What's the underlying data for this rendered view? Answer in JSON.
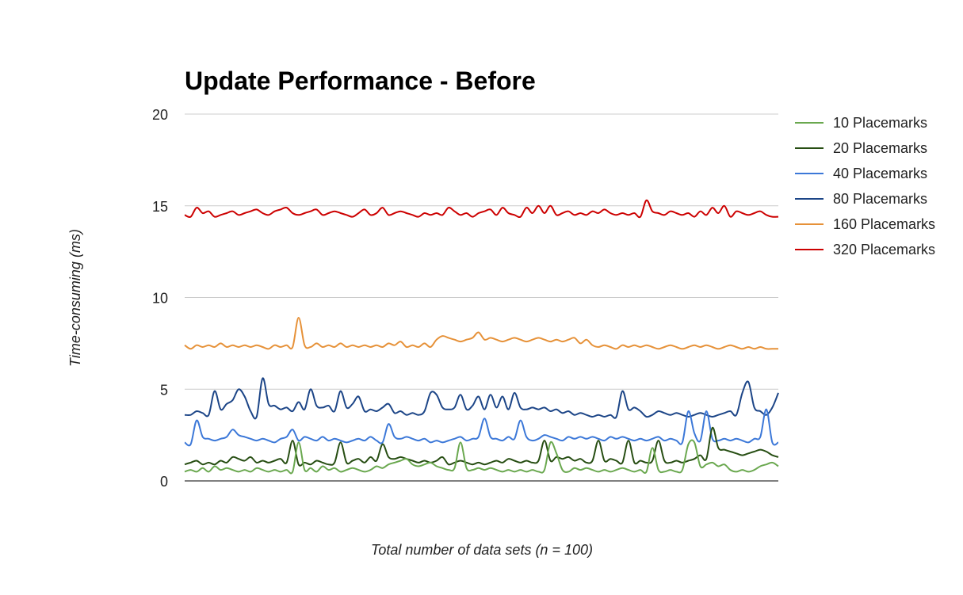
{
  "chart_data": {
    "type": "line",
    "title": "Update Performance - Before",
    "xlabel": "Total number of data sets (n = 100)",
    "ylabel": "Time-consuming (ms)",
    "ylim": [
      0,
      20
    ],
    "yticks": [
      0,
      5,
      10,
      15,
      20
    ],
    "grid": true,
    "legend": "right",
    "x": [
      1,
      2,
      3,
      4,
      5,
      6,
      7,
      8,
      9,
      10,
      11,
      12,
      13,
      14,
      15,
      16,
      17,
      18,
      19,
      20,
      21,
      22,
      23,
      24,
      25,
      26,
      27,
      28,
      29,
      30,
      31,
      32,
      33,
      34,
      35,
      36,
      37,
      38,
      39,
      40,
      41,
      42,
      43,
      44,
      45,
      46,
      47,
      48,
      49,
      50,
      51,
      52,
      53,
      54,
      55,
      56,
      57,
      58,
      59,
      60,
      61,
      62,
      63,
      64,
      65,
      66,
      67,
      68,
      69,
      70,
      71,
      72,
      73,
      74,
      75,
      76,
      77,
      78,
      79,
      80,
      81,
      82,
      83,
      84,
      85,
      86,
      87,
      88,
      89,
      90,
      91,
      92,
      93,
      94,
      95,
      96,
      97,
      98,
      99,
      100
    ],
    "series": [
      {
        "name": "10 Placemarks",
        "color": "#6aa84f",
        "values": [
          0.5,
          0.6,
          0.5,
          0.7,
          0.5,
          0.8,
          0.6,
          0.7,
          0.6,
          0.5,
          0.6,
          0.5,
          0.7,
          0.6,
          0.5,
          0.6,
          0.5,
          0.6,
          0.5,
          2.1,
          0.6,
          0.7,
          0.5,
          0.8,
          0.6,
          0.7,
          0.5,
          0.6,
          0.7,
          0.6,
          0.5,
          0.6,
          0.8,
          0.7,
          0.9,
          1.0,
          1.1,
          1.2,
          0.9,
          0.8,
          0.9,
          1.0,
          0.8,
          0.7,
          0.6,
          0.7,
          2.1,
          0.7,
          0.6,
          0.7,
          0.6,
          0.7,
          0.6,
          0.5,
          0.6,
          0.5,
          0.6,
          0.5,
          0.6,
          0.5,
          0.6,
          2.1,
          1.5,
          0.6,
          0.5,
          0.7,
          0.6,
          0.7,
          0.6,
          0.5,
          0.6,
          0.5,
          0.6,
          0.7,
          0.6,
          0.5,
          0.6,
          0.5,
          1.8,
          0.6,
          0.5,
          0.6,
          0.5,
          0.6,
          2.0,
          2.1,
          0.8,
          0.9,
          1.0,
          0.8,
          0.9,
          0.6,
          0.5,
          0.6,
          0.5,
          0.6,
          0.8,
          0.9,
          1.0,
          0.8
        ]
      },
      {
        "name": "20 Placemarks",
        "color": "#274e13",
        "values": [
          0.9,
          1.0,
          1.1,
          0.9,
          1.0,
          0.9,
          1.1,
          1.0,
          1.3,
          1.2,
          1.1,
          1.3,
          1.0,
          1.1,
          1.0,
          1.1,
          1.2,
          1.0,
          2.2,
          0.9,
          1.0,
          0.9,
          1.1,
          1.0,
          0.9,
          1.0,
          2.1,
          1.0,
          1.1,
          1.2,
          1.0,
          1.3,
          1.1,
          2.0,
          1.3,
          1.2,
          1.3,
          1.2,
          1.1,
          1.0,
          1.1,
          1.0,
          1.1,
          1.3,
          0.9,
          1.0,
          1.1,
          1.0,
          0.9,
          1.0,
          0.9,
          1.0,
          1.1,
          1.0,
          1.2,
          1.1,
          1.0,
          1.1,
          1.0,
          1.1,
          2.2,
          1.1,
          1.3,
          1.2,
          1.3,
          1.1,
          1.2,
          1.0,
          1.1,
          2.2,
          1.1,
          1.2,
          1.1,
          1.0,
          2.2,
          1.0,
          1.1,
          1.0,
          1.1,
          2.2,
          1.1,
          1.0,
          1.1,
          1.0,
          1.1,
          1.2,
          1.4,
          1.2,
          2.9,
          1.8,
          1.7,
          1.6,
          1.5,
          1.4,
          1.5,
          1.6,
          1.7,
          1.6,
          1.4,
          1.3
        ]
      },
      {
        "name": "40 Placemarks",
        "color": "#3c78d8",
        "values": [
          2.1,
          2.0,
          3.3,
          2.4,
          2.3,
          2.2,
          2.3,
          2.4,
          2.8,
          2.5,
          2.4,
          2.3,
          2.2,
          2.3,
          2.2,
          2.1,
          2.3,
          2.4,
          2.8,
          2.2,
          2.4,
          2.3,
          2.2,
          2.4,
          2.2,
          2.3,
          2.2,
          2.1,
          2.2,
          2.3,
          2.2,
          2.4,
          2.2,
          2.1,
          3.1,
          2.4,
          2.3,
          2.4,
          2.3,
          2.2,
          2.3,
          2.1,
          2.2,
          2.1,
          2.2,
          2.3,
          2.4,
          2.2,
          2.3,
          2.4,
          3.4,
          2.4,
          2.3,
          2.2,
          2.4,
          2.3,
          3.3,
          2.4,
          2.2,
          2.3,
          2.5,
          2.4,
          2.3,
          2.2,
          2.4,
          2.3,
          2.4,
          2.3,
          2.4,
          2.3,
          2.2,
          2.4,
          2.3,
          2.4,
          2.3,
          2.2,
          2.3,
          2.2,
          2.3,
          2.4,
          2.2,
          2.3,
          2.2,
          2.1,
          3.8,
          2.6,
          2.2,
          3.8,
          2.3,
          2.2,
          2.3,
          2.2,
          2.3,
          2.2,
          2.1,
          2.3,
          2.4,
          3.9,
          2.1,
          2.1
        ]
      },
      {
        "name": "80 Placemarks",
        "color": "#1c4587",
        "values": [
          3.6,
          3.6,
          3.8,
          3.7,
          3.6,
          4.9,
          3.9,
          4.2,
          4.4,
          5.0,
          4.6,
          3.8,
          3.5,
          5.6,
          4.2,
          4.1,
          3.9,
          4.0,
          3.8,
          4.3,
          3.9,
          5.0,
          4.1,
          4.0,
          4.1,
          3.8,
          4.9,
          4.0,
          4.2,
          4.6,
          3.8,
          3.9,
          3.8,
          4.0,
          4.2,
          3.7,
          3.8,
          3.6,
          3.7,
          3.6,
          3.8,
          4.8,
          4.7,
          4.0,
          3.9,
          4.0,
          4.7,
          3.9,
          4.1,
          4.6,
          3.9,
          4.7,
          4.0,
          4.6,
          3.9,
          4.8,
          4.0,
          3.9,
          4.0,
          3.9,
          4.0,
          3.8,
          3.9,
          3.7,
          3.8,
          3.6,
          3.7,
          3.6,
          3.5,
          3.6,
          3.5,
          3.6,
          3.5,
          4.9,
          3.9,
          4.0,
          3.8,
          3.5,
          3.6,
          3.8,
          3.7,
          3.6,
          3.7,
          3.6,
          3.5,
          3.6,
          3.7,
          3.6,
          3.5,
          3.6,
          3.7,
          3.8,
          3.6,
          4.8,
          5.4,
          4.0,
          3.8,
          3.6,
          4.0,
          4.8
        ]
      },
      {
        "name": "160 Placemarks",
        "color": "#e69138",
        "values": [
          7.4,
          7.2,
          7.4,
          7.3,
          7.4,
          7.3,
          7.5,
          7.3,
          7.4,
          7.3,
          7.4,
          7.3,
          7.4,
          7.3,
          7.2,
          7.4,
          7.3,
          7.4,
          7.3,
          8.9,
          7.4,
          7.3,
          7.5,
          7.3,
          7.4,
          7.3,
          7.5,
          7.3,
          7.4,
          7.3,
          7.4,
          7.3,
          7.4,
          7.3,
          7.5,
          7.4,
          7.6,
          7.3,
          7.4,
          7.3,
          7.5,
          7.3,
          7.7,
          7.9,
          7.8,
          7.7,
          7.6,
          7.7,
          7.8,
          8.1,
          7.7,
          7.8,
          7.7,
          7.6,
          7.7,
          7.8,
          7.7,
          7.6,
          7.7,
          7.8,
          7.7,
          7.6,
          7.7,
          7.6,
          7.7,
          7.8,
          7.5,
          7.7,
          7.4,
          7.3,
          7.4,
          7.3,
          7.2,
          7.4,
          7.3,
          7.4,
          7.3,
          7.4,
          7.3,
          7.2,
          7.3,
          7.4,
          7.3,
          7.2,
          7.3,
          7.4,
          7.3,
          7.4,
          7.3,
          7.2,
          7.3,
          7.4,
          7.3,
          7.2,
          7.3,
          7.2,
          7.3,
          7.2,
          7.2,
          7.2
        ]
      },
      {
        "name": "320 Placemarks",
        "color": "#cc0000",
        "values": [
          14.5,
          14.4,
          14.9,
          14.6,
          14.7,
          14.4,
          14.5,
          14.6,
          14.7,
          14.5,
          14.6,
          14.7,
          14.8,
          14.6,
          14.5,
          14.7,
          14.8,
          14.9,
          14.6,
          14.5,
          14.6,
          14.7,
          14.8,
          14.5,
          14.6,
          14.7,
          14.6,
          14.5,
          14.4,
          14.6,
          14.8,
          14.5,
          14.6,
          14.9,
          14.5,
          14.6,
          14.7,
          14.6,
          14.5,
          14.4,
          14.6,
          14.5,
          14.6,
          14.5,
          14.9,
          14.7,
          14.5,
          14.6,
          14.4,
          14.6,
          14.7,
          14.8,
          14.5,
          14.9,
          14.6,
          14.5,
          14.4,
          14.9,
          14.6,
          15.0,
          14.6,
          15.0,
          14.5,
          14.6,
          14.7,
          14.5,
          14.6,
          14.5,
          14.7,
          14.6,
          14.8,
          14.6,
          14.5,
          14.6,
          14.5,
          14.6,
          14.4,
          15.3,
          14.7,
          14.6,
          14.5,
          14.7,
          14.6,
          14.5,
          14.6,
          14.4,
          14.7,
          14.5,
          14.9,
          14.6,
          15.0,
          14.4,
          14.7,
          14.6,
          14.5,
          14.6,
          14.7,
          14.5,
          14.4,
          14.4
        ]
      }
    ]
  }
}
